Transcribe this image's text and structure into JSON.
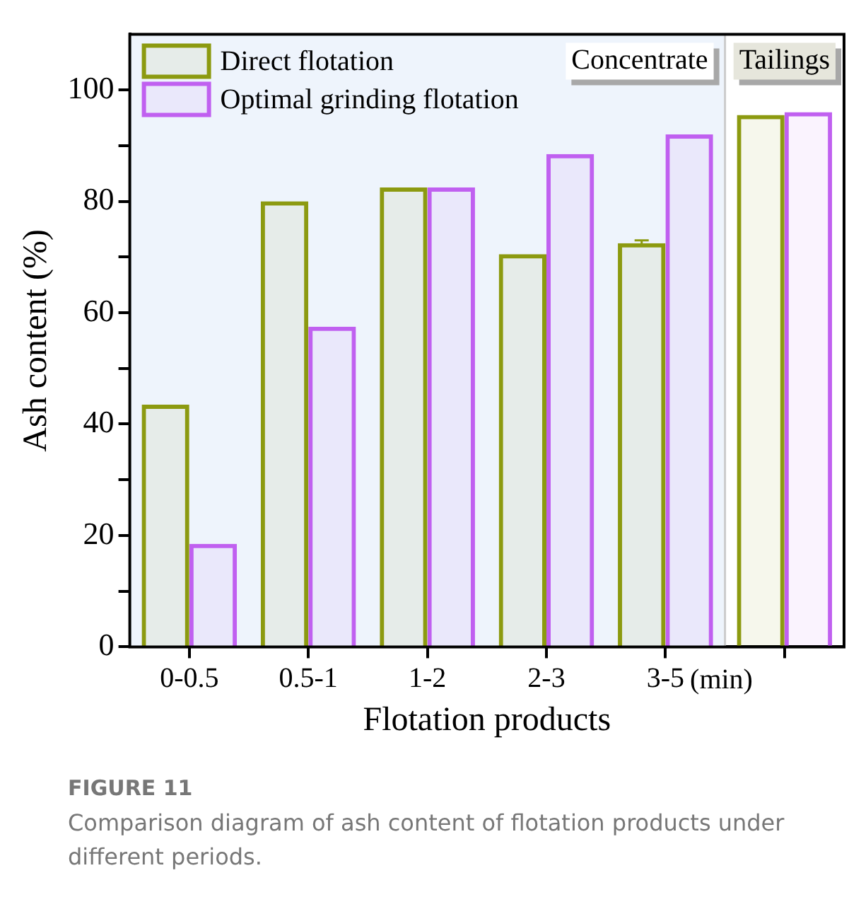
{
  "chart_data": {
    "type": "bar",
    "title": "FIGURE 11",
    "subtitle": "Comparison diagram of ash content of flotation products under different periods.",
    "xlabel": "Flotation products",
    "ylabel": "Ash content (%)",
    "categories": [
      "0-0.5",
      "0.5-1",
      "1-2",
      "2-3",
      "3-5",
      null
    ],
    "series": [
      {
        "name": "Direct flotation",
        "color": "#8c9a10",
        "values": [
          43.5,
          80,
          82.5,
          70.5,
          72.5,
          95.5
        ],
        "errors": [
          null,
          null,
          null,
          null,
          0.5,
          null
        ]
      },
      {
        "name": "Optimal grinding flotation",
        "color": "#c060f0",
        "values": [
          18.5,
          57.5,
          82.5,
          88.5,
          92,
          96
        ]
      }
    ],
    "ylim": [
      0,
      110
    ],
    "yticks": [
      0,
      {
        "value": 10,
        "label": null
      },
      20,
      {
        "value": 30,
        "label": null
      },
      40,
      {
        "value": 50,
        "label": null
      },
      60,
      {
        "value": 70,
        "label": null
      },
      80,
      {
        "value": 90,
        "label": null
      },
      100
    ],
    "bands": [
      {
        "axis": "x",
        "from": "0-0.5",
        "to": "3-5",
        "label": "Concentrate",
        "color": "#eef4fc"
      }
    ],
    "annotations": [
      "(min)",
      "Tailings"
    ],
    "legend": "top left"
  }
}
